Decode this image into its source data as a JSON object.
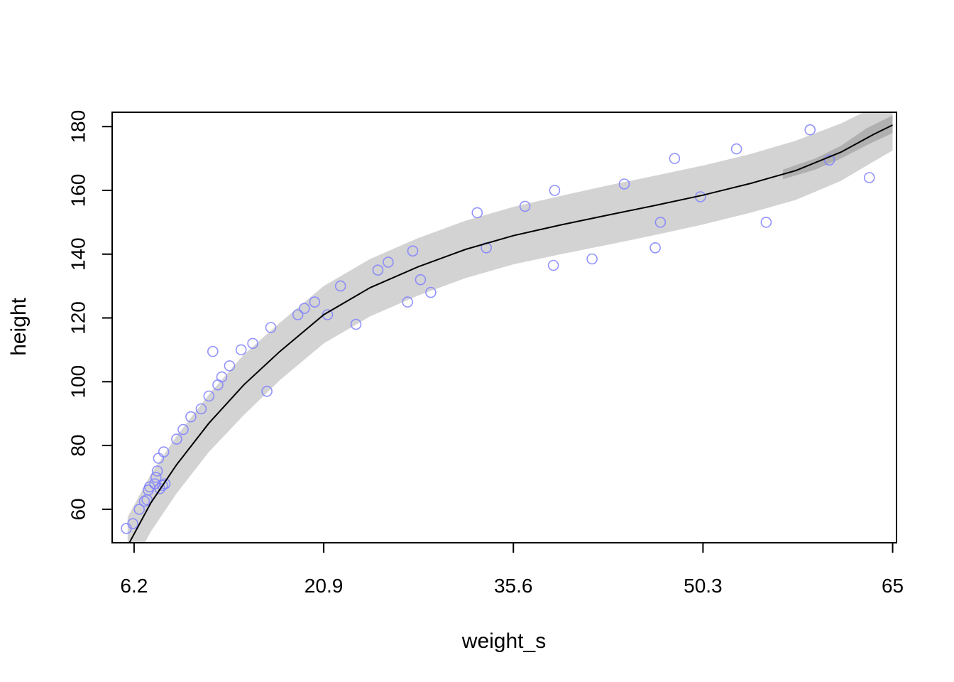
{
  "chart_data": {
    "type": "scatter",
    "xlabel": "weight_s",
    "ylabel": "height",
    "xlim": [
      4.5,
      65.3
    ],
    "ylim": [
      49.5,
      184.5
    ],
    "x_ticks": [
      6.2,
      20.9,
      35.6,
      50.3,
      65
    ],
    "x_tick_labels": [
      "6.2",
      "20.9",
      "35.6",
      "50.3",
      "65"
    ],
    "y_ticks": [
      60,
      80,
      100,
      120,
      140,
      160,
      180
    ],
    "y_tick_labels": [
      "60",
      "80",
      "100",
      "120",
      "140",
      "160",
      "180"
    ],
    "grid": false,
    "colors": {
      "points": "#8080ff",
      "mean_line": "#000000",
      "interval_band": "#d3d3d3",
      "mean_interval_band": "#b0b0b0",
      "axes": "#000000"
    },
    "mean_line": {
      "x": [
        5.7,
        7.5,
        9.5,
        12,
        14.7,
        17.5,
        20.9,
        24.5,
        28.2,
        31.9,
        35.6,
        39.3,
        43,
        46.6,
        50.3,
        54,
        57.5,
        61,
        63.5,
        65
      ],
      "y": [
        48.5,
        62,
        74,
        87,
        99,
        109.5,
        121,
        129.5,
        136,
        141.5,
        145.8,
        149.2,
        152.3,
        155.3,
        158.5,
        162.2,
        166.2,
        172,
        177.5,
        180.5
      ]
    },
    "prediction_interval": {
      "x": [
        5.7,
        7.5,
        9.5,
        12,
        14.7,
        17.5,
        20.9,
        24.5,
        28.2,
        31.9,
        35.6,
        39.3,
        43,
        46.6,
        50.3,
        54,
        57.5,
        61,
        63.5,
        65
      ],
      "lower": [
        39.5,
        53,
        65,
        78,
        89.5,
        100.5,
        112,
        120.5,
        127,
        132.5,
        136.8,
        140,
        143,
        146,
        149.3,
        153,
        157,
        163,
        169,
        172.5
      ],
      "upper": [
        57.5,
        71,
        83,
        96,
        108.5,
        118.5,
        130,
        138.5,
        145,
        150.5,
        154.8,
        158.3,
        161.6,
        164.6,
        167.8,
        171.4,
        175.6,
        181,
        186,
        188.5
      ]
    },
    "mean_interval": {
      "x": [
        56.5,
        59,
        61,
        63,
        65
      ],
      "lower": [
        163.5,
        166.5,
        170,
        174.2,
        178
      ],
      "upper": [
        166.5,
        170,
        174,
        179.5,
        183.5
      ]
    },
    "series": [
      {
        "x": [
          5.6,
          6.1,
          6.6,
          7,
          7.2,
          7.3,
          7.4,
          7.8,
          7.9,
          8,
          8.2,
          8.4,
          8.6,
          8.1,
          8.5,
          9.5,
          10,
          10.6,
          11.4,
          12,
          12.3,
          13,
          13.6,
          14.5,
          15.4,
          16.8,
          16.5,
          18.9,
          19.4,
          20.2,
          21.2,
          22.2,
          23.4,
          25.1,
          25.9,
          27.8,
          28.4,
          29.2,
          32.8,
          33.5,
          36.5,
          38.7,
          38.8,
          41.7,
          44.2,
          46.6,
          47,
          48.1,
          50.1,
          52.9,
          55.2,
          58.6,
          60.1,
          63.2,
          12.7,
          27.4
        ],
        "y": [
          54,
          55.5,
          60,
          62.5,
          63,
          66,
          67,
          68,
          70,
          72,
          66.5,
          67.5,
          68,
          76,
          78,
          82,
          85,
          89,
          91.5,
          95.5,
          109.5,
          101.5,
          105,
          110,
          112,
          117,
          97,
          121,
          123,
          125,
          121,
          130,
          118,
          135,
          137.5,
          141,
          132,
          128,
          153,
          142,
          155,
          136.5,
          160,
          138.5,
          162,
          142,
          150,
          170,
          158,
          173,
          150,
          179,
          169.5,
          164,
          99,
          125
        ]
      }
    ]
  }
}
